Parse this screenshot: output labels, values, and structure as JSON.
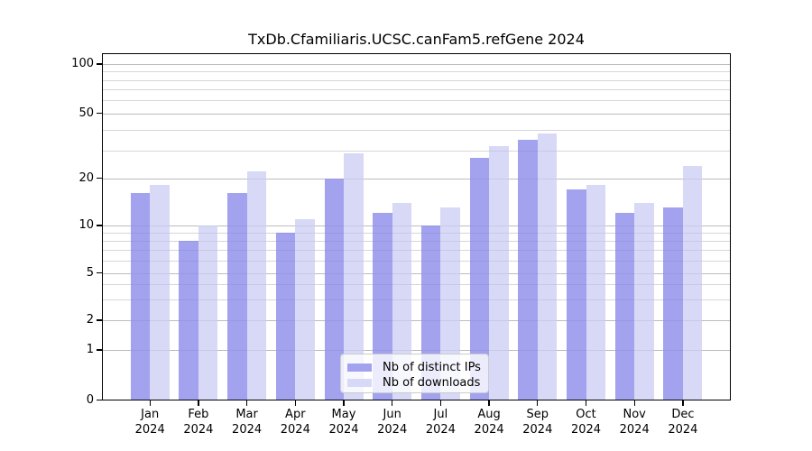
{
  "title": "TxDb.Cfamiliaris.UCSC.canFam5.refGene 2024",
  "legend": {
    "ips_label": "Nb of distinct IPs",
    "downloads_label": "Nb of downloads"
  },
  "y_axis": {
    "tick_labels": [
      "100",
      "50",
      "20",
      "10",
      "5",
      "2",
      "1",
      "0"
    ],
    "tick_values": [
      100,
      50,
      20,
      10,
      5,
      2,
      1,
      0
    ]
  },
  "x_axis": {
    "year": "2024",
    "months": [
      "Jan",
      "Feb",
      "Mar",
      "Apr",
      "May",
      "Jun",
      "Jul",
      "Aug",
      "Sep",
      "Oct",
      "Nov",
      "Dec"
    ]
  },
  "colors": {
    "ips_bar": "#a2a2ef",
    "downloads_bar": "#d8d8f7",
    "grid_major": "#cccccc",
    "grid_minor": "#e9e9e9",
    "axis": "#000000",
    "legend_border": "#cccccc"
  },
  "chart_data": {
    "type": "bar",
    "title": "TxDb.Cfamiliaris.UCSC.canFam5.refGene 2024",
    "categories": [
      "Jan 2024",
      "Feb 2024",
      "Mar 2024",
      "Apr 2024",
      "May 2024",
      "Jun 2024",
      "Jul 2024",
      "Aug 2024",
      "Sep 2024",
      "Oct 2024",
      "Nov 2024",
      "Dec 2024"
    ],
    "series": [
      {
        "name": "Nb of distinct IPs",
        "values": [
          16,
          8,
          16,
          9,
          20,
          12,
          10,
          27,
          35,
          17,
          12,
          13
        ]
      },
      {
        "name": "Nb of downloads",
        "values": [
          18,
          10,
          22,
          11,
          29,
          14,
          13,
          32,
          38,
          18,
          14,
          24
        ]
      }
    ],
    "xlabel": "",
    "ylabel": "",
    "yscale": "log-like (compressed near zero)",
    "yticks_major": [
      0,
      1,
      2,
      5,
      10,
      20,
      50,
      100
    ],
    "yticks_minor": [
      3,
      4,
      6,
      7,
      8,
      9,
      30,
      40,
      60,
      70,
      80,
      90
    ],
    "ylim": [
      0,
      115
    ],
    "grid": true,
    "legend_position": "inside bottom-center"
  }
}
